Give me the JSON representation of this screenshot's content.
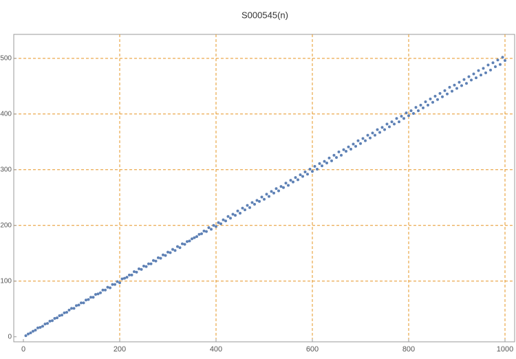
{
  "chart_data": {
    "type": "scatter",
    "title": "S000545(n)",
    "xlim": [
      -20,
      1020
    ],
    "ylim": [
      -9,
      543
    ],
    "xticks": [
      0,
      200,
      400,
      600,
      800,
      1000
    ],
    "yticks": [
      0,
      100,
      200,
      300,
      400,
      500
    ],
    "grid": true,
    "series": [
      {
        "name": "S000545(n)",
        "color": "#5e81b5",
        "x": [
          5,
          10,
          15,
          20,
          25,
          30,
          35,
          40,
          45,
          50,
          55,
          60,
          65,
          70,
          75,
          80,
          85,
          90,
          95,
          100,
          105,
          110,
          115,
          120,
          125,
          130,
          135,
          140,
          145,
          150,
          155,
          160,
          165,
          170,
          175,
          180,
          185,
          190,
          195,
          200,
          205,
          210,
          215,
          220,
          225,
          230,
          235,
          240,
          245,
          250,
          255,
          260,
          265,
          270,
          275,
          280,
          285,
          290,
          295,
          300,
          305,
          310,
          315,
          320,
          325,
          330,
          335,
          340,
          345,
          350,
          355,
          360,
          365,
          370,
          375,
          380,
          385,
          390,
          395,
          400,
          405,
          410,
          415,
          420,
          425,
          430,
          435,
          440,
          445,
          450,
          455,
          460,
          465,
          470,
          475,
          480,
          485,
          490,
          495,
          500,
          505,
          510,
          515,
          520,
          525,
          530,
          535,
          540,
          545,
          550,
          555,
          560,
          565,
          570,
          575,
          580,
          585,
          590,
          595,
          600,
          605,
          610,
          615,
          620,
          625,
          630,
          635,
          640,
          645,
          650,
          655,
          660,
          665,
          670,
          675,
          680,
          685,
          690,
          695,
          700,
          705,
          710,
          715,
          720,
          725,
          730,
          735,
          740,
          745,
          750,
          755,
          760,
          765,
          770,
          775,
          780,
          785,
          790,
          795,
          800,
          805,
          810,
          815,
          820,
          825,
          830,
          835,
          840,
          845,
          850,
          855,
          860,
          865,
          870,
          875,
          880,
          885,
          890,
          895,
          900,
          905,
          910,
          915,
          920,
          925,
          930,
          935,
          940,
          945,
          950,
          955,
          960,
          965,
          970,
          975,
          980,
          985,
          990,
          995,
          1000
        ],
        "values": [
          2,
          5,
          7,
          10,
          12,
          16,
          17,
          19,
          23,
          24,
          28,
          29,
          33,
          34,
          38,
          39,
          43,
          44,
          48,
          51,
          51,
          56,
          57,
          61,
          61,
          66,
          67,
          71,
          71,
          76,
          77,
          79,
          84,
          84,
          89,
          88,
          94,
          94,
          99,
          97,
          104,
          105,
          107,
          111,
          111,
          117,
          116,
          122,
          121,
          127,
          126,
          131,
          131,
          137,
          136,
          142,
          141,
          147,
          146,
          152,
          151,
          157,
          155,
          162,
          160,
          167,
          166,
          171,
          172,
          176,
          178,
          180,
          184,
          185,
          190,
          189,
          196,
          193,
          200,
          198,
          205,
          203,
          210,
          208,
          216,
          213,
          220,
          218,
          226,
          222,
          231,
          228,
          236,
          232,
          241,
          238,
          245,
          243,
          251,
          247,
          256,
          252,
          261,
          258,
          266,
          262,
          270,
          268,
          276,
          272,
          281,
          278,
          286,
          282,
          291,
          288,
          296,
          292,
          301,
          297,
          306,
          301,
          311,
          307,
          315,
          312,
          321,
          316,
          326,
          322,
          332,
          326,
          336,
          333,
          341,
          337,
          346,
          342,
          352,
          347,
          356,
          352,
          362,
          357,
          366,
          362,
          372,
          367,
          376,
          372,
          382,
          377,
          386,
          382,
          392,
          386,
          396,
          392,
          402,
          397,
          406,
          401,
          412,
          406,
          416,
          411,
          422,
          416,
          427,
          421,
          432,
          426,
          437,
          431,
          442,
          436,
          448,
          441,
          452,
          446,
          457,
          451,
          462,
          455,
          467,
          461,
          472,
          465,
          478,
          470,
          482,
          474,
          488,
          479,
          492,
          485,
          497,
          489,
          502,
          496
        ]
      }
    ]
  }
}
